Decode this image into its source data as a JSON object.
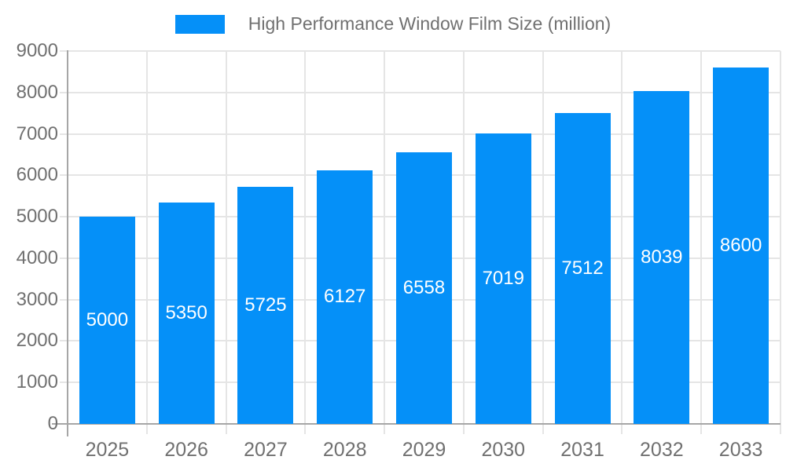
{
  "chart_data": {
    "type": "bar",
    "title": "High Performance Window Film Size (million)",
    "categories": [
      "2025",
      "2026",
      "2027",
      "2028",
      "2029",
      "2030",
      "2031",
      "2032",
      "2033"
    ],
    "values": [
      5000,
      5350,
      5725,
      6127,
      6558,
      7019,
      7512,
      8039,
      8600
    ],
    "xlabel": "",
    "ylabel": "",
    "ylim": [
      0,
      9000
    ],
    "y_ticks": [
      0,
      1000,
      2000,
      3000,
      4000,
      5000,
      6000,
      7000,
      8000,
      9000
    ],
    "grid": true,
    "legend_position": "top-center",
    "bar_color": "#0590f8",
    "bar_label_color": "#ffffff",
    "axis_text_color": "#707070",
    "grid_color": "#e5e5e5",
    "axis_line_color": "#a6a6a6",
    "background_color": "#ffffff"
  }
}
